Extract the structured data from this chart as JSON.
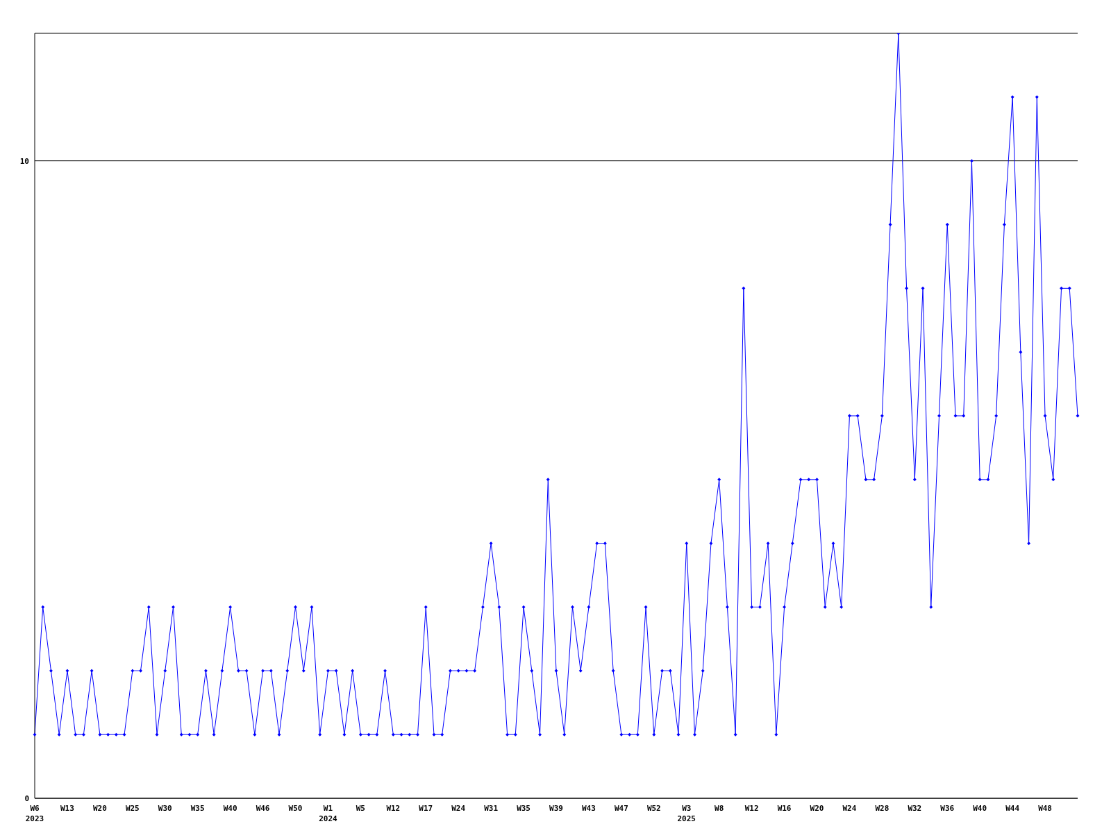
{
  "chart_data": {
    "type": "line",
    "categories": [
      "W6\n2023",
      null,
      null,
      null,
      "W13",
      null,
      null,
      null,
      "W20",
      null,
      null,
      null,
      "W25",
      null,
      null,
      null,
      "W30",
      null,
      null,
      null,
      "W35",
      null,
      null,
      null,
      "W40",
      null,
      null,
      null,
      "W46",
      null,
      null,
      null,
      "W50",
      null,
      null,
      null,
      "W1\n2024",
      null,
      null,
      null,
      "W5",
      null,
      null,
      null,
      "W12",
      null,
      null,
      null,
      "W17",
      null,
      null,
      null,
      "W24",
      null,
      null,
      null,
      "W31",
      null,
      null,
      null,
      "W35",
      null,
      null,
      null,
      "W39",
      null,
      null,
      null,
      "W43",
      null,
      null,
      null,
      "W47",
      null,
      null,
      null,
      "W52",
      null,
      null,
      null,
      "W3\n2025",
      null,
      null,
      null,
      "W8",
      null,
      null,
      null,
      "W12",
      null,
      null,
      null,
      "W16",
      null,
      null,
      null,
      "W20",
      null,
      null,
      null,
      "W24",
      null,
      null,
      null,
      "W28",
      null,
      null,
      null,
      "W32",
      null,
      null,
      null,
      "W36",
      null,
      null,
      null,
      "W40",
      null,
      null,
      null,
      "W44",
      null,
      null,
      null,
      "W48",
      null,
      null,
      null,
      null
    ],
    "series": [
      {
        "color": "#0000ff",
        "values": [
          1,
          3,
          2,
          1,
          2,
          1,
          1,
          2,
          1,
          1,
          1,
          1,
          2,
          2,
          3,
          1,
          2,
          3,
          1,
          1,
          1,
          2,
          1,
          2,
          3,
          2,
          2,
          1,
          2,
          2,
          1,
          2,
          3,
          2,
          3,
          1,
          2,
          2,
          1,
          2,
          1,
          1,
          1,
          2,
          1,
          1,
          1,
          1,
          3,
          1,
          1,
          2,
          2,
          2,
          2,
          3,
          4,
          3,
          1,
          1,
          3,
          2,
          1,
          5,
          2,
          1,
          3,
          2,
          3,
          4,
          4,
          2,
          1,
          1,
          1,
          3,
          1,
          2,
          2,
          1,
          4,
          1,
          2,
          4,
          5,
          3,
          1,
          8,
          3,
          3,
          4,
          1,
          3,
          4,
          5,
          5,
          5,
          3,
          4,
          3,
          6,
          6,
          5,
          5,
          6,
          9,
          12,
          8,
          5,
          8,
          3,
          6,
          9,
          6,
          6,
          10,
          5,
          5,
          6,
          9,
          11,
          7,
          4,
          11,
          6,
          5,
          8,
          8,
          6
        ]
      }
    ],
    "ylim": [
      0,
      12
    ],
    "yticks": [
      0,
      10
    ],
    "grid": "y",
    "marker": "diamond",
    "line_style": "solid"
  }
}
